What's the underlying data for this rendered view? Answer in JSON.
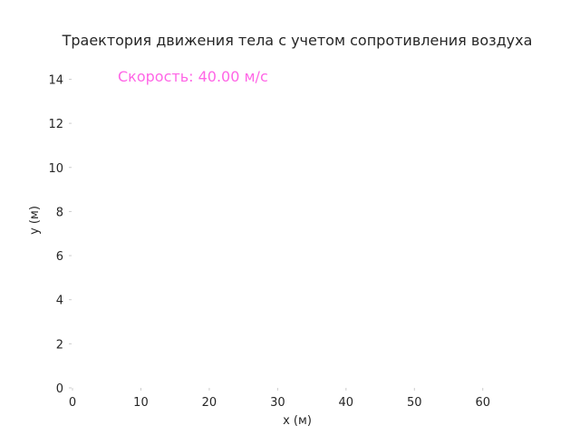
{
  "chart_data": {
    "type": "line",
    "title": "Траектория движения тела с учетом сопротивления воздуха",
    "xlabel": "x (м)",
    "ylabel": "y (м)",
    "xlim": [
      0,
      66
    ],
    "ylim": [
      0,
      14.8
    ],
    "xticks": [
      "0",
      "10",
      "20",
      "30",
      "40",
      "50",
      "60"
    ],
    "yticks": [
      "0",
      "2",
      "4",
      "6",
      "8",
      "10",
      "12",
      "14"
    ],
    "grid": false,
    "annotation": {
      "text": "Скорость: 40.00 м/с",
      "color": "#ff66e6"
    },
    "series": []
  }
}
